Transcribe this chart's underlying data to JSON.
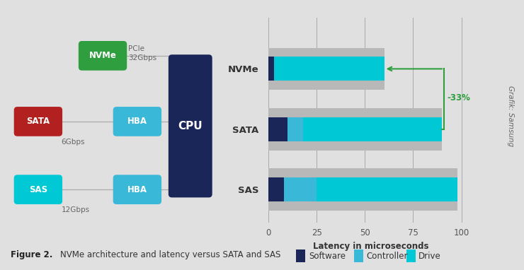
{
  "bg_color": "#e0e0e0",
  "fig_width": 7.4,
  "fig_height": 3.82,
  "left_panel": {
    "nvme": {
      "label": "NVMe",
      "color": "#2e9e3e"
    },
    "sata": {
      "label": "SATA",
      "color": "#b22020"
    },
    "sas": {
      "label": "SAS",
      "color": "#00c8d4"
    },
    "hba1": {
      "label": "HBA",
      "color": "#3ab8d8"
    },
    "hba2": {
      "label": "HBA",
      "color": "#3ab8d8"
    },
    "cpu": {
      "label": "CPU",
      "color": "#1a2558"
    },
    "pcie_label": "PCIe\n32Gbps",
    "gbps_6": "6Gbps",
    "gbps_12": "12Gbps"
  },
  "right_panel": {
    "categories": [
      "NVMe",
      "SATA",
      "SAS"
    ],
    "software": [
      3,
      10,
      8
    ],
    "controller": [
      0,
      8,
      17
    ],
    "drive": [
      57,
      72,
      73
    ],
    "bg_totals": [
      60,
      90,
      98
    ],
    "color_software": "#1a2558",
    "color_controller": "#3ab8d8",
    "color_drive": "#00c8d4",
    "color_bg_bar": "#b8b8b8",
    "xlim": [
      -2,
      108
    ],
    "xticks": [
      0,
      25,
      50,
      75,
      100
    ],
    "xlabel": "Latency in microseconds",
    "annotation_text": "-33%",
    "annotation_color": "#2e9e3e"
  },
  "legend_items": [
    {
      "label": "Software",
      "color": "#1a2558"
    },
    {
      "label": "Controller",
      "color": "#3ab8d8"
    },
    {
      "label": "Drive",
      "color": "#00c8d4"
    }
  ],
  "grafik_text": "Grafik: Samsung"
}
